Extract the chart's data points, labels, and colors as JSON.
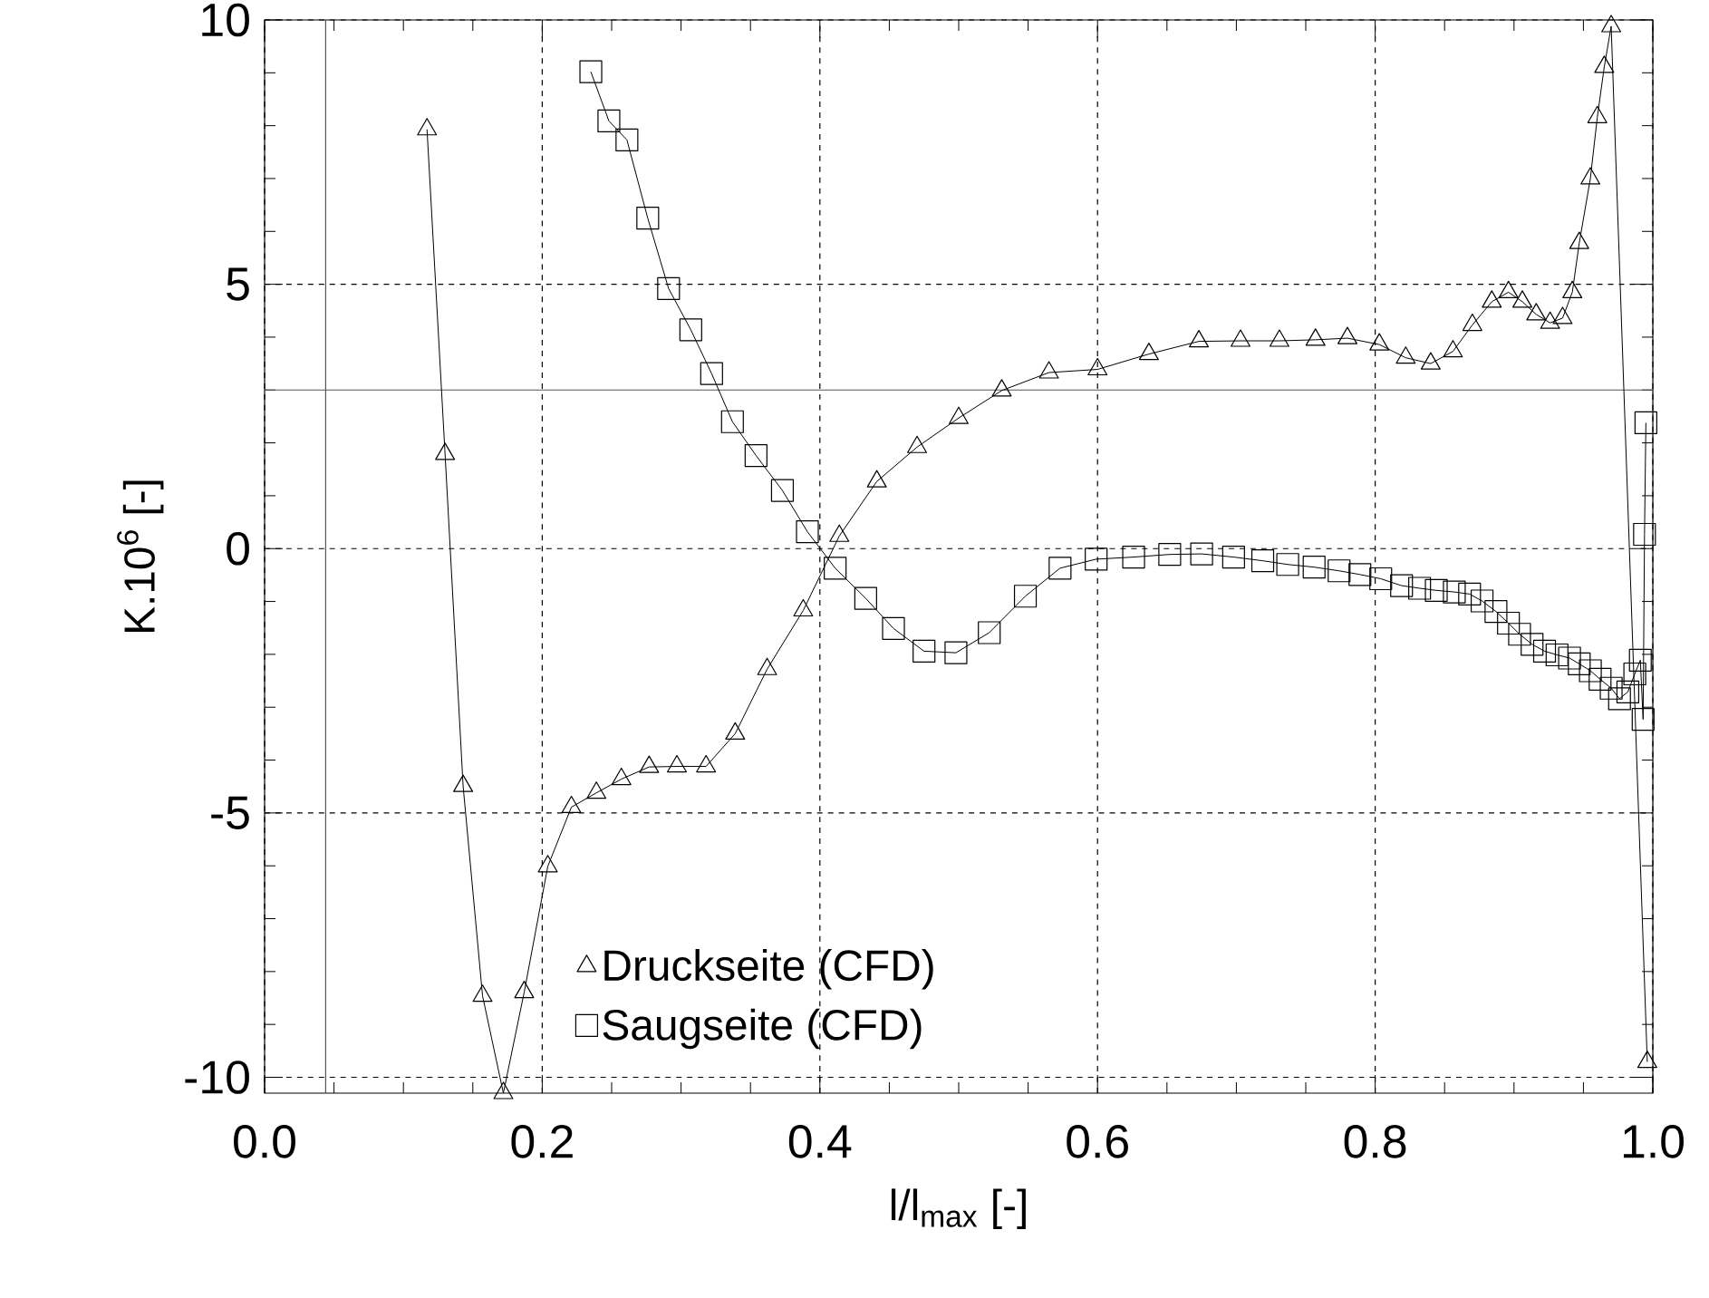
{
  "chart_data": {
    "type": "line",
    "xlabel": "l/l$_{max}$ [-]",
    "ylabel": "K.10$^{6}$ [-]",
    "xlim": [
      0,
      1
    ],
    "ylim": [
      -10.3,
      10
    ],
    "xticks": [
      {
        "value": 0,
        "label": "0.0"
      },
      {
        "value": 0.2,
        "label": "0.2"
      },
      {
        "value": 0.4,
        "label": "0.4"
      },
      {
        "value": 0.6,
        "label": "0.6"
      },
      {
        "value": 0.8,
        "label": "0.8"
      },
      {
        "value": 1,
        "label": "1.0"
      }
    ],
    "yticks": [
      -10,
      -5,
      0,
      5,
      10
    ],
    "grid": true,
    "legend": "bottom left",
    "line_style": "solid",
    "ref_lines": [
      {
        "axis": "x",
        "value": 0.044,
        "color": "#555555"
      },
      {
        "axis": "y",
        "value": 3,
        "color": "#555555"
      }
    ],
    "series": [
      {
        "name": "Druckseite (CFD)",
        "color": "#000000",
        "marker": "triangle",
        "x": [
          0.117,
          0.13,
          0.143,
          0.157,
          0.172,
          0.187,
          0.204,
          0.221,
          0.239,
          0.257,
          0.277,
          0.297,
          0.318,
          0.339,
          0.362,
          0.388,
          0.414,
          0.441,
          0.47,
          0.5,
          0.531,
          0.565,
          0.6,
          0.637,
          0.673,
          0.703,
          0.731,
          0.757,
          0.78,
          0.803,
          0.822,
          0.84,
          0.856,
          0.87,
          0.884,
          0.896,
          0.906,
          0.916,
          0.926,
          0.935,
          0.942,
          0.947,
          0.955,
          0.96,
          0.965,
          0.97,
          0.996
        ],
        "values": [
          7.93,
          1.79,
          -4.49,
          -8.46,
          -10.3,
          -8.39,
          -6.01,
          -4.89,
          -4.62,
          -4.36,
          -4.13,
          -4.12,
          -4.12,
          -3.5,
          -2.28,
          -1.17,
          0.24,
          1.27,
          1.92,
          2.47,
          2.99,
          3.33,
          3.39,
          3.68,
          3.92,
          3.93,
          3.93,
          3.95,
          3.98,
          3.86,
          3.61,
          3.5,
          3.73,
          4.23,
          4.67,
          4.85,
          4.67,
          4.43,
          4.27,
          4.36,
          4.85,
          5.78,
          7.0,
          8.16,
          9.11,
          9.88,
          -9.71
        ]
      },
      {
        "name": "Saugseite (CFD)",
        "color": "#000000",
        "marker": "square",
        "x": [
          0.235,
          0.248,
          0.261,
          0.276,
          0.291,
          0.307,
          0.322,
          0.337,
          0.354,
          0.373,
          0.391,
          0.411,
          0.433,
          0.453,
          0.475,
          0.498,
          0.522,
          0.548,
          0.573,
          0.599,
          0.626,
          0.652,
          0.675,
          0.698,
          0.719,
          0.737,
          0.756,
          0.774,
          0.789,
          0.804,
          0.819,
          0.832,
          0.844,
          0.857,
          0.868,
          0.877,
          0.887,
          0.896,
          0.904,
          0.913,
          0.922,
          0.931,
          0.94,
          0.947,
          0.955,
          0.962,
          0.97,
          0.976,
          0.982,
          0.987,
          0.991,
          0.993,
          0.994,
          0.995
        ],
        "values": [
          9.02,
          8.09,
          7.73,
          6.25,
          4.92,
          4.14,
          3.31,
          2.4,
          1.76,
          1.1,
          0.32,
          -0.37,
          -0.94,
          -1.51,
          -1.94,
          -1.97,
          -1.59,
          -0.9,
          -0.37,
          -0.2,
          -0.16,
          -0.11,
          -0.1,
          -0.16,
          -0.23,
          -0.3,
          -0.35,
          -0.42,
          -0.49,
          -0.57,
          -0.7,
          -0.75,
          -0.79,
          -0.82,
          -0.86,
          -0.99,
          -1.19,
          -1.41,
          -1.62,
          -1.81,
          -1.94,
          -2.01,
          -2.07,
          -2.18,
          -2.31,
          -2.47,
          -2.64,
          -2.84,
          -2.71,
          -2.37,
          -2.11,
          -3.23,
          0.27,
          2.38
        ]
      }
    ]
  }
}
